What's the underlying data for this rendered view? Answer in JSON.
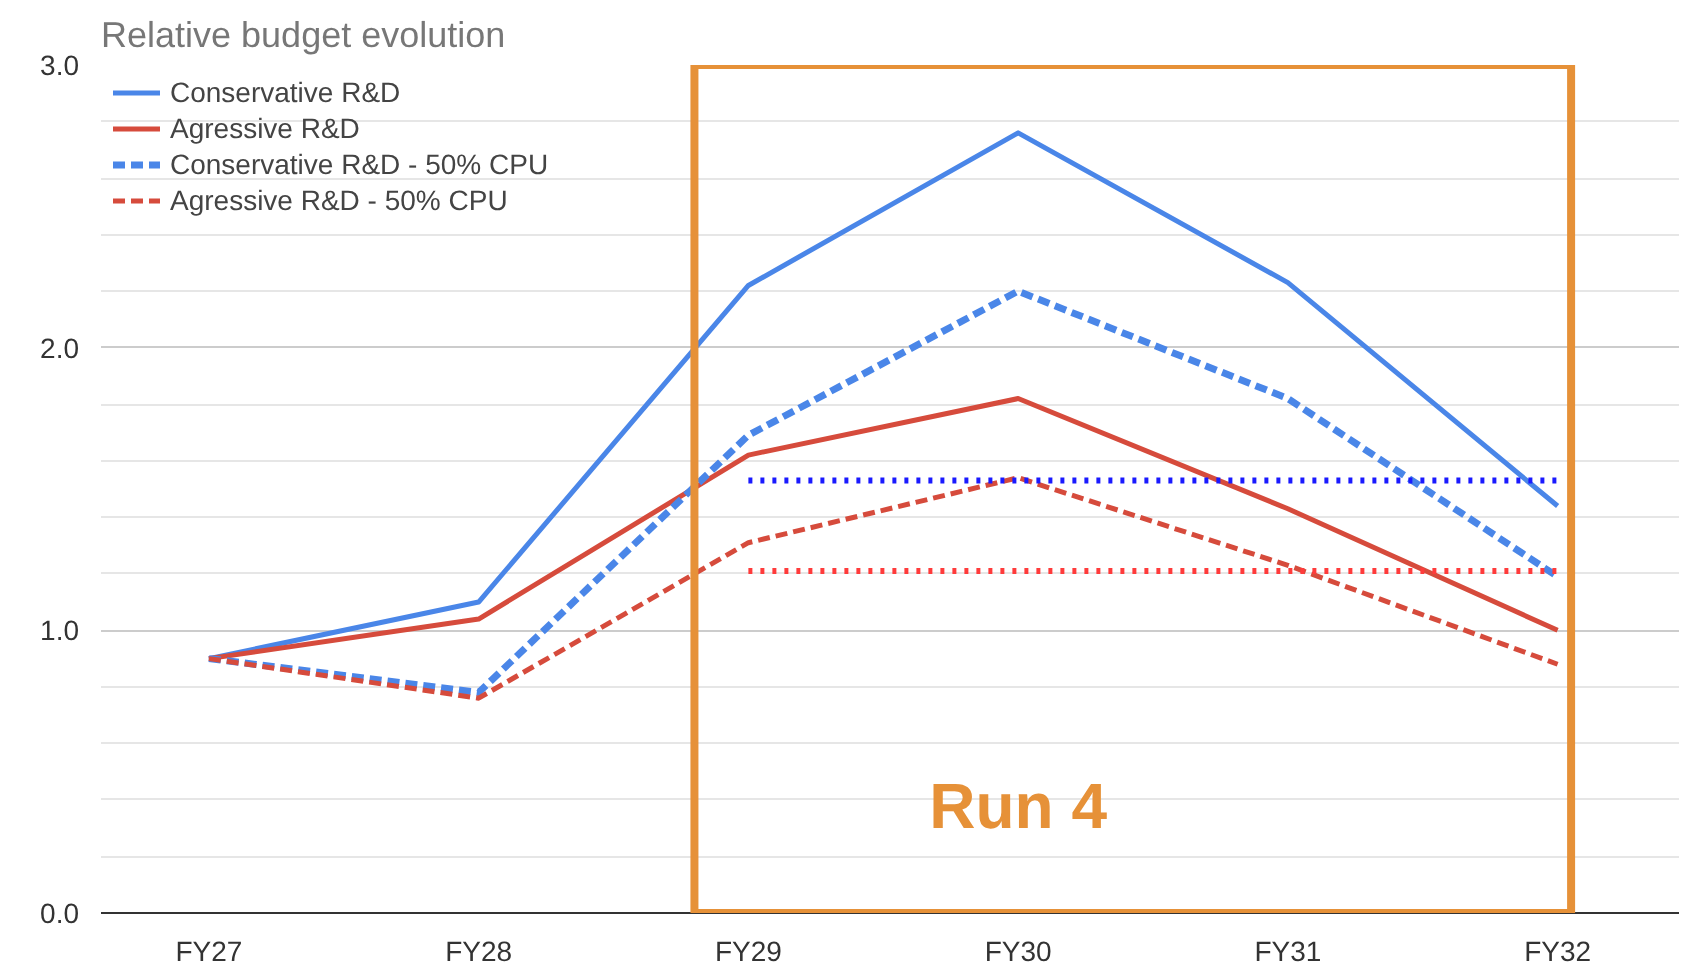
{
  "chart_data": {
    "type": "line",
    "title": "Relative budget evolution",
    "categories": [
      "FY27",
      "FY28",
      "FY29",
      "FY30",
      "FY31",
      "FY32"
    ],
    "series": [
      {
        "name": "Conservative R&D",
        "color": "#4a86e8",
        "line_style": "solid",
        "values": [
          0.9,
          1.1,
          2.22,
          2.76,
          2.23,
          1.44
        ]
      },
      {
        "name": "Agressive R&D",
        "color": "#d64b3c",
        "line_style": "solid",
        "values": [
          0.9,
          1.04,
          1.62,
          1.82,
          1.43,
          1.0
        ]
      },
      {
        "name": "Conservative R&D - 50% CPU",
        "color": "#4a86e8",
        "line_style": "dashed",
        "values": [
          0.9,
          0.78,
          1.69,
          2.2,
          1.82,
          1.19
        ]
      },
      {
        "name": "Agressive R&D - 50% CPU",
        "color": "#d64b3c",
        "line_style": "dashed",
        "values": [
          0.9,
          0.76,
          1.31,
          1.54,
          1.23,
          0.88
        ]
      },
      {
        "color": "#1a1aff",
        "line_style": "dotted",
        "values": [
          null,
          null,
          1.53,
          1.53,
          1.53,
          1.53
        ]
      },
      {
        "color": "#ff3b3b",
        "line_style": "dotted",
        "values": [
          null,
          null,
          1.21,
          1.21,
          1.21,
          1.21
        ]
      }
    ],
    "ylim": [
      0,
      3.0
    ],
    "yticks": [
      {
        "value": 0,
        "label": "0.0"
      },
      {
        "value": 1,
        "label": "1.0"
      },
      {
        "value": 2,
        "label": "2.0"
      },
      {
        "value": 3,
        "label": "3.0"
      }
    ],
    "grid": "y",
    "legend": "top left",
    "marker": "none",
    "annotations": [
      "Run 4"
    ]
  }
}
